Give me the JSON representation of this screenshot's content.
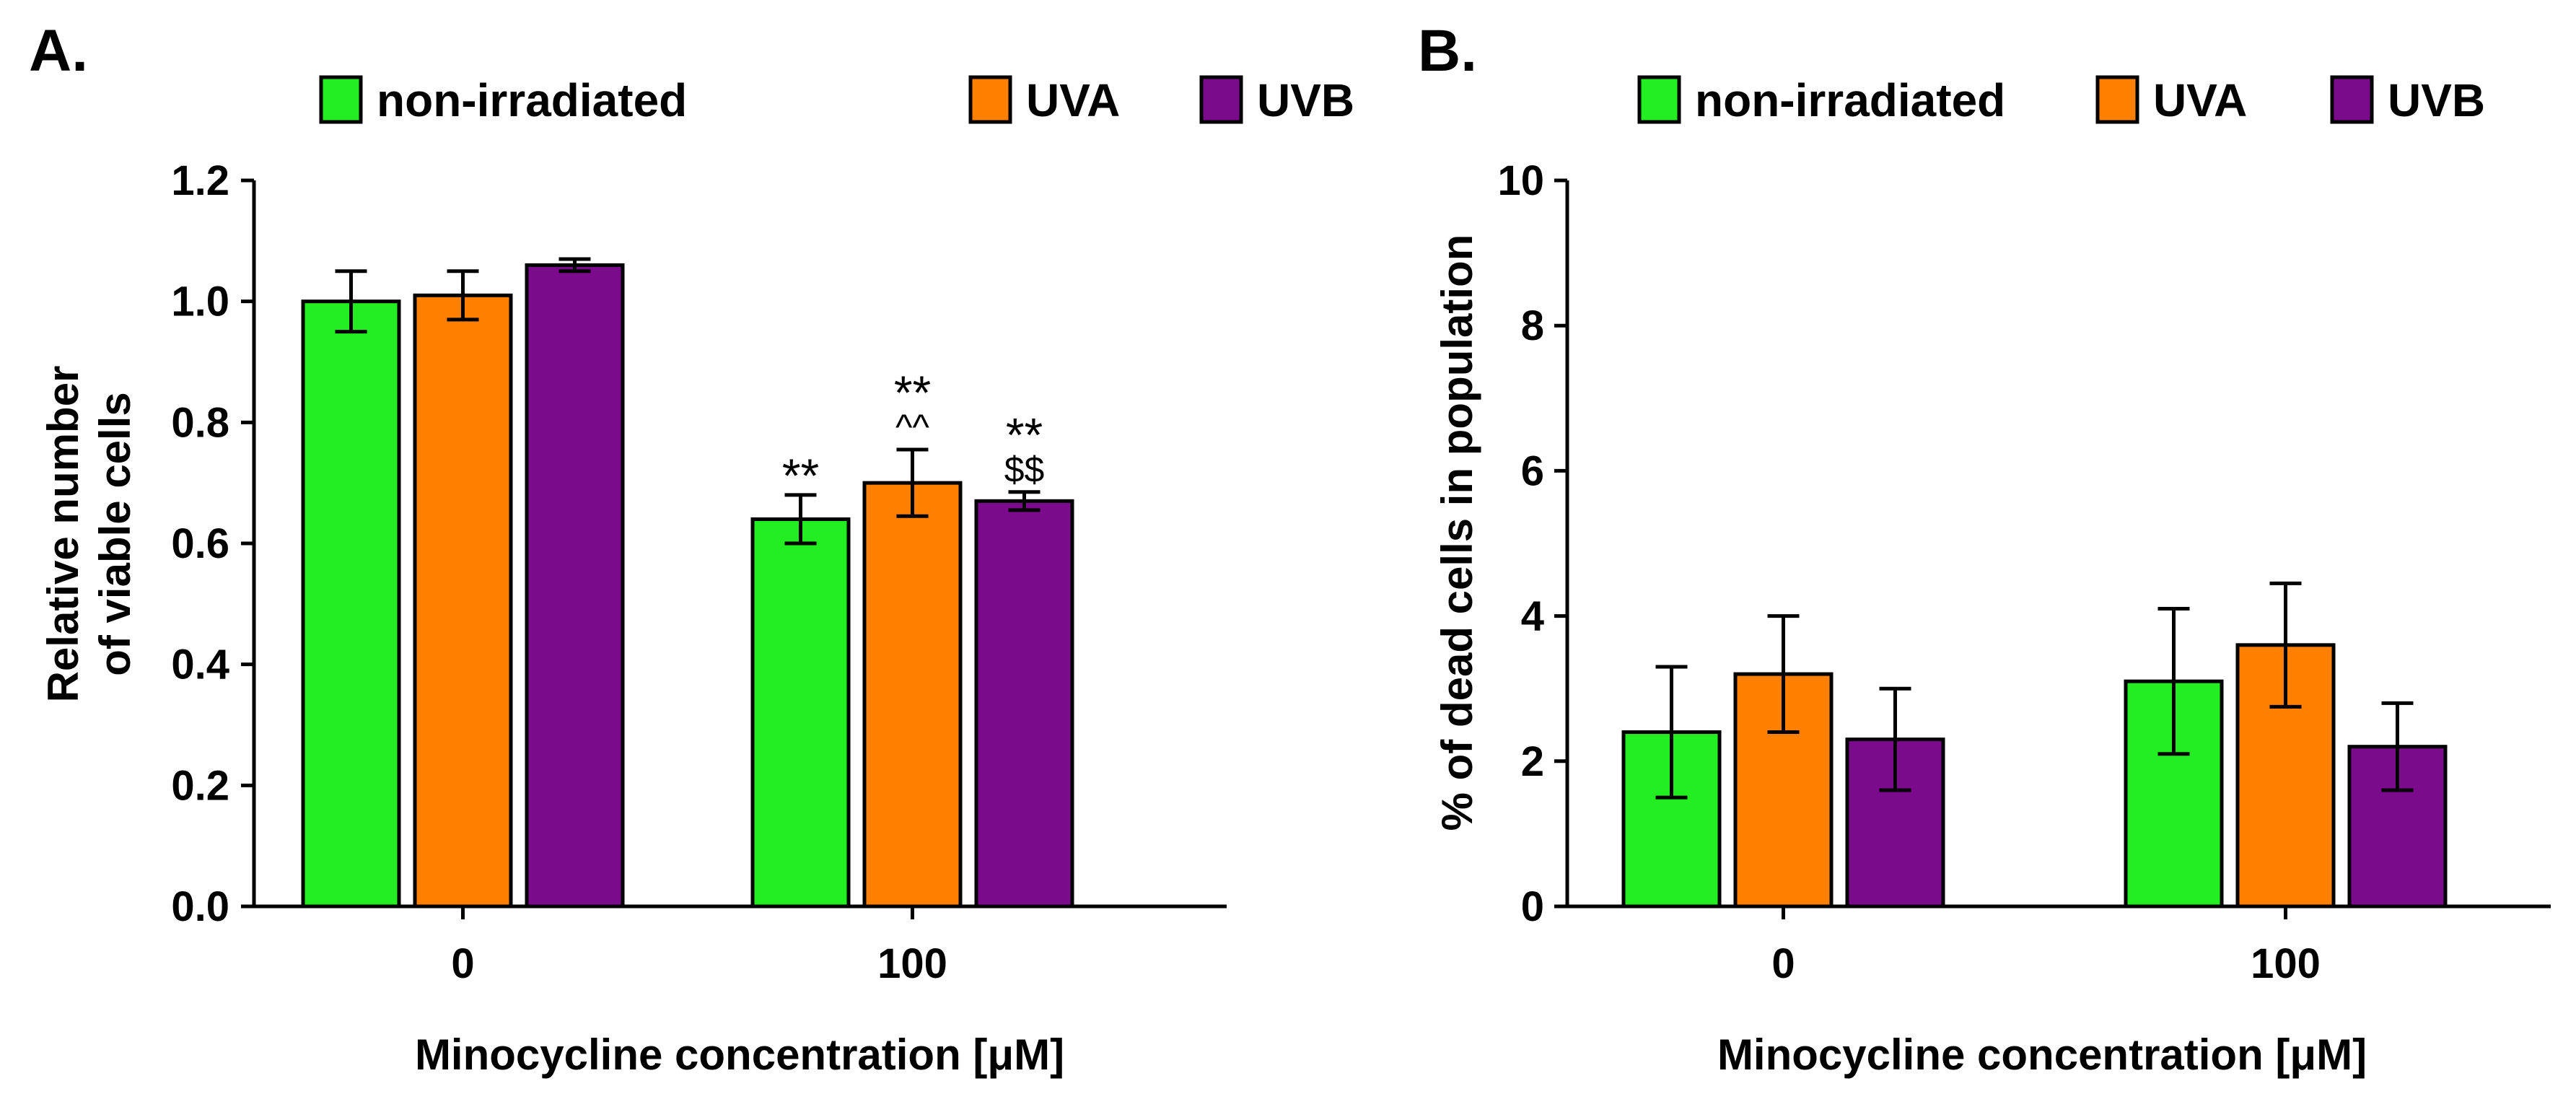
{
  "legend_colors": {
    "non-irradiated": "#22ee22",
    "UVA": "#ff8000",
    "UVB": "#7b0a8c"
  },
  "chart_data": [
    {
      "panel": "A.",
      "type": "bar",
      "categories": [
        "0",
        "100"
      ],
      "series": [
        {
          "name": "non-irradiated",
          "values": [
            1.0,
            0.64
          ],
          "errors": [
            0.05,
            0.04
          ]
        },
        {
          "name": "UVA",
          "values": [
            1.01,
            0.7
          ],
          "errors": [
            0.04,
            0.055
          ]
        },
        {
          "name": "UVB",
          "values": [
            1.06,
            0.67
          ],
          "errors": [
            0.01,
            0.015
          ]
        }
      ],
      "annotations": [
        {
          "series": "non-irradiated",
          "category": "100",
          "lines": [
            "**"
          ]
        },
        {
          "series": "UVA",
          "category": "100",
          "lines": [
            "**",
            "^^"
          ]
        },
        {
          "series": "UVB",
          "category": "100",
          "lines": [
            "**",
            "$$"
          ]
        }
      ],
      "xlabel": "Minocycline concentration [μM]",
      "ylabel": [
        "Relative number",
        "of viable cells"
      ],
      "ylim": [
        0,
        1.2
      ],
      "yticks": [
        "0.0",
        "0.2",
        "0.4",
        "0.6",
        "0.8",
        "1.0",
        "1.2"
      ],
      "legend": "top"
    },
    {
      "panel": "B.",
      "type": "bar",
      "categories": [
        "0",
        "100"
      ],
      "series": [
        {
          "name": "non-irradiated",
          "values": [
            2.4,
            3.1
          ],
          "errors": [
            0.9,
            1.0
          ]
        },
        {
          "name": "UVA",
          "values": [
            3.2,
            3.6
          ],
          "errors": [
            0.8,
            0.85
          ]
        },
        {
          "name": "UVB",
          "values": [
            2.3,
            2.2
          ],
          "errors": [
            0.7,
            0.6
          ]
        }
      ],
      "annotations": [],
      "xlabel": "Minocycline concentration [μM]",
      "ylabel": [
        "% of dead cells in population"
      ],
      "ylim": [
        0,
        10
      ],
      "yticks": [
        "0",
        "2",
        "4",
        "6",
        "8",
        "10"
      ],
      "legend": "top"
    }
  ]
}
